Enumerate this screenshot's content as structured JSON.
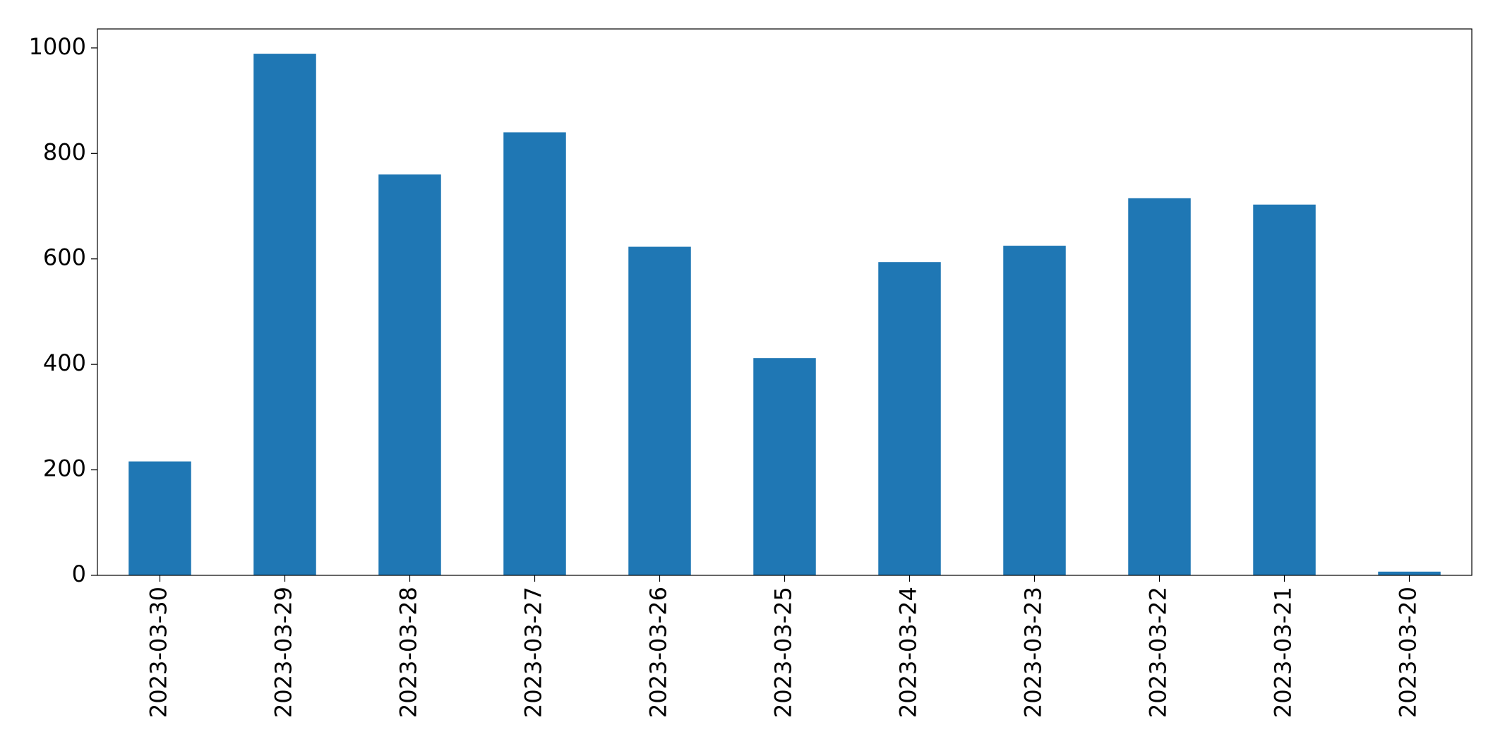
{
  "chart_data": {
    "type": "bar",
    "categories": [
      "2023-03-30",
      "2023-03-29",
      "2023-03-28",
      "2023-03-27",
      "2023-03-26",
      "2023-03-25",
      "2023-03-24",
      "2023-03-23",
      "2023-03-22",
      "2023-03-21",
      "2023-03-20"
    ],
    "values": [
      216,
      989,
      760,
      840,
      623,
      412,
      594,
      625,
      715,
      703,
      7
    ],
    "color": "#1f77b4",
    "ylim": [
      0,
      1036
    ],
    "yticks": [
      0,
      200,
      400,
      600,
      800,
      1000
    ],
    "grid": false
  }
}
